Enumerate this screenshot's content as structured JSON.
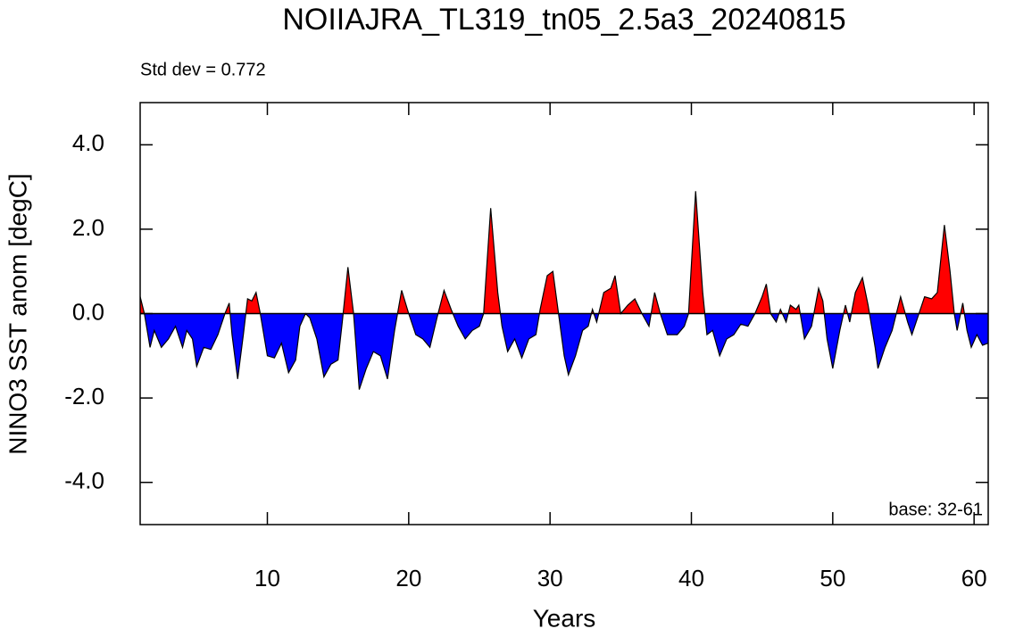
{
  "chart_data": {
    "type": "area",
    "title": "NOIIAJRA_TL319_tn05_2.5a3_20240815",
    "annotations": [
      "Std dev = 0.772",
      "base: 32-61"
    ],
    "x_label": "Years",
    "y_label": "NINO3 SST anom [degC]",
    "above_color": "#ff0000",
    "below_color": "#0000ff",
    "x": [
      1.0,
      1.3,
      1.7,
      2.0,
      2.5,
      3.0,
      3.5,
      4.0,
      4.3,
      4.7,
      5.0,
      5.5,
      6.0,
      6.5,
      7.0,
      7.3,
      7.5,
      7.9,
      8.3,
      8.6,
      8.9,
      9.2,
      9.5,
      10.0,
      10.5,
      11.0,
      11.5,
      12.0,
      12.3,
      12.7,
      13.0,
      13.5,
      14.0,
      14.5,
      15.0,
      15.3,
      15.7,
      16.1,
      16.5,
      17.0,
      17.5,
      18.0,
      18.5,
      19.0,
      19.5,
      20.0,
      20.5,
      21.0,
      21.5,
      22.0,
      22.5,
      23.0,
      23.5,
      24.0,
      24.5,
      25.0,
      25.3,
      25.8,
      26.3,
      26.6,
      27.0,
      27.5,
      28.0,
      28.5,
      29.0,
      29.3,
      29.8,
      30.2,
      30.6,
      31.0,
      31.3,
      31.8,
      32.3,
      32.7,
      33.0,
      33.3,
      33.8,
      34.3,
      34.6,
      35.0,
      35.5,
      36.0,
      36.5,
      37.0,
      37.4,
      37.8,
      38.3,
      39.0,
      39.5,
      39.8,
      40.3,
      40.8,
      41.1,
      41.5,
      42.0,
      42.5,
      43.0,
      43.5,
      44.0,
      44.5,
      45.0,
      45.3,
      45.6,
      46.0,
      46.3,
      46.7,
      47.0,
      47.4,
      47.6,
      48.0,
      48.5,
      49.0,
      49.3,
      49.6,
      50.0,
      50.5,
      50.9,
      51.2,
      51.6,
      52.1,
      52.5,
      53.0,
      53.2,
      53.7,
      54.2,
      54.5,
      54.8,
      55.3,
      55.6,
      56.0,
      56.5,
      57.0,
      57.4,
      57.9,
      58.3,
      58.6,
      58.8,
      59.2,
      59.5,
      59.8,
      60.2,
      60.6,
      61.0
    ],
    "values": [
      0.4,
      0.0,
      -0.8,
      -0.4,
      -0.8,
      -0.6,
      -0.3,
      -0.8,
      -0.4,
      -0.6,
      -1.25,
      -0.8,
      -0.85,
      -0.5,
      0.0,
      0.25,
      -0.5,
      -1.55,
      -0.5,
      0.35,
      0.3,
      0.5,
      0.0,
      -1.0,
      -1.05,
      -0.7,
      -1.4,
      -1.1,
      -0.3,
      0.0,
      -0.1,
      -0.6,
      -1.5,
      -1.2,
      -1.1,
      -0.2,
      1.1,
      0.0,
      -1.8,
      -1.3,
      -0.9,
      -1.0,
      -1.55,
      -0.4,
      0.55,
      0.0,
      -0.5,
      -0.6,
      -0.8,
      -0.1,
      0.55,
      0.1,
      -0.3,
      -0.6,
      -0.4,
      -0.3,
      0.0,
      2.5,
      0.5,
      -0.3,
      -0.9,
      -0.6,
      -1.05,
      -0.6,
      -0.5,
      0.1,
      0.9,
      1.0,
      0.0,
      -1.0,
      -1.45,
      -1.0,
      -0.4,
      -0.3,
      0.1,
      -0.2,
      0.5,
      0.6,
      0.9,
      0.0,
      0.2,
      0.35,
      0.0,
      -0.3,
      0.5,
      0.0,
      -0.5,
      -0.5,
      -0.3,
      0.0,
      2.9,
      0.5,
      -0.5,
      -0.4,
      -1.0,
      -0.6,
      -0.5,
      -0.25,
      -0.3,
      0.0,
      0.4,
      0.7,
      0.0,
      -0.2,
      0.1,
      -0.2,
      0.2,
      0.1,
      0.2,
      -0.6,
      -0.3,
      0.6,
      0.3,
      -0.6,
      -1.3,
      -0.4,
      0.2,
      -0.2,
      0.5,
      0.85,
      0.2,
      -0.8,
      -1.3,
      -0.8,
      -0.4,
      0.0,
      0.4,
      -0.2,
      -0.5,
      -0.1,
      0.4,
      0.35,
      0.5,
      2.1,
      1.0,
      0.0,
      -0.4,
      0.25,
      -0.4,
      -0.8,
      -0.5,
      -0.75,
      -0.7
    ],
    "xlim": [
      1,
      61
    ],
    "xticks": [
      10,
      20,
      30,
      40,
      50,
      60
    ],
    "ylim": [
      -5,
      5
    ],
    "yticks": [
      {
        "value": -4,
        "label": "-4.0"
      },
      {
        "value": -2,
        "label": "-2.0"
      },
      {
        "value": 0,
        "label": "0.0"
      },
      {
        "value": 2,
        "label": "2.0"
      },
      {
        "value": 4,
        "label": "4.0"
      }
    ]
  }
}
